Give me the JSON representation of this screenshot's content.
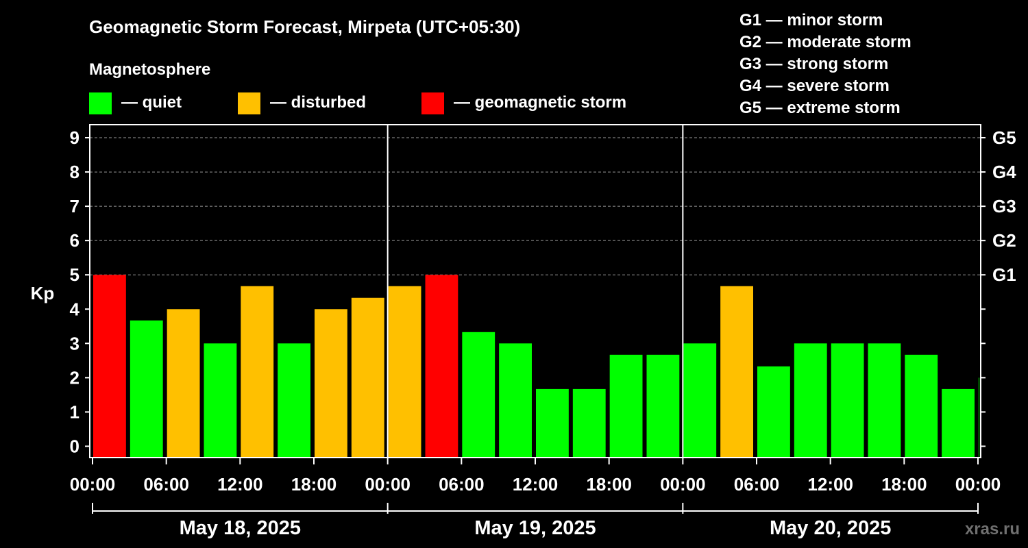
{
  "header": {
    "title": "Geomagnetic Storm Forecast, Mirpeta (UTC+05:30)",
    "subtitle": "Magnetosphere"
  },
  "legend": [
    {
      "label": "— quiet",
      "color": "#00ff00"
    },
    {
      "label": "— disturbed",
      "color": "#ffc000"
    },
    {
      "label": "— geomagnetic storm",
      "color": "#ff0000"
    }
  ],
  "storm_scale": [
    "G1 — minor storm",
    "G2 — moderate storm",
    "G3 — strong storm",
    "G4 — severe storm",
    "G5 — extreme storm"
  ],
  "watermark": "xras.ru",
  "chart_data": {
    "type": "bar",
    "ylabel": "Kp",
    "ylim": [
      -0.33,
      9.38
    ],
    "yticks": [
      "0",
      "1",
      "2",
      "3",
      "4",
      "5",
      "6",
      "7",
      "8",
      "9"
    ],
    "right_ticks": [
      {
        "value": 5,
        "label": "G1"
      },
      {
        "value": 6,
        "label": "G2"
      },
      {
        "value": 7,
        "label": "G3"
      },
      {
        "value": 8,
        "label": "G4"
      },
      {
        "value": 9,
        "label": "G5"
      }
    ],
    "x_tick_labels": [
      "00:00",
      "06:00",
      "12:00",
      "18:00",
      "00:00",
      "06:00",
      "12:00",
      "18:00",
      "00:00",
      "06:00",
      "12:00",
      "18:00",
      "00:00"
    ],
    "days": [
      "May 18, 2025",
      "May 19, 2025",
      "May 20, 2025"
    ],
    "grid": "dashed at G levels",
    "colors": {
      "quiet": "#00ff00",
      "disturbed": "#ffc000",
      "storm": "#ff0000"
    },
    "values": [
      5.0,
      3.67,
      4.0,
      3.0,
      4.67,
      3.0,
      4.0,
      4.33,
      4.67,
      5.0,
      3.33,
      3.0,
      1.67,
      1.67,
      2.67,
      2.67,
      3.0,
      4.67,
      2.33,
      3.0,
      3.0,
      3.0,
      2.67,
      1.67,
      2.0
    ]
  }
}
